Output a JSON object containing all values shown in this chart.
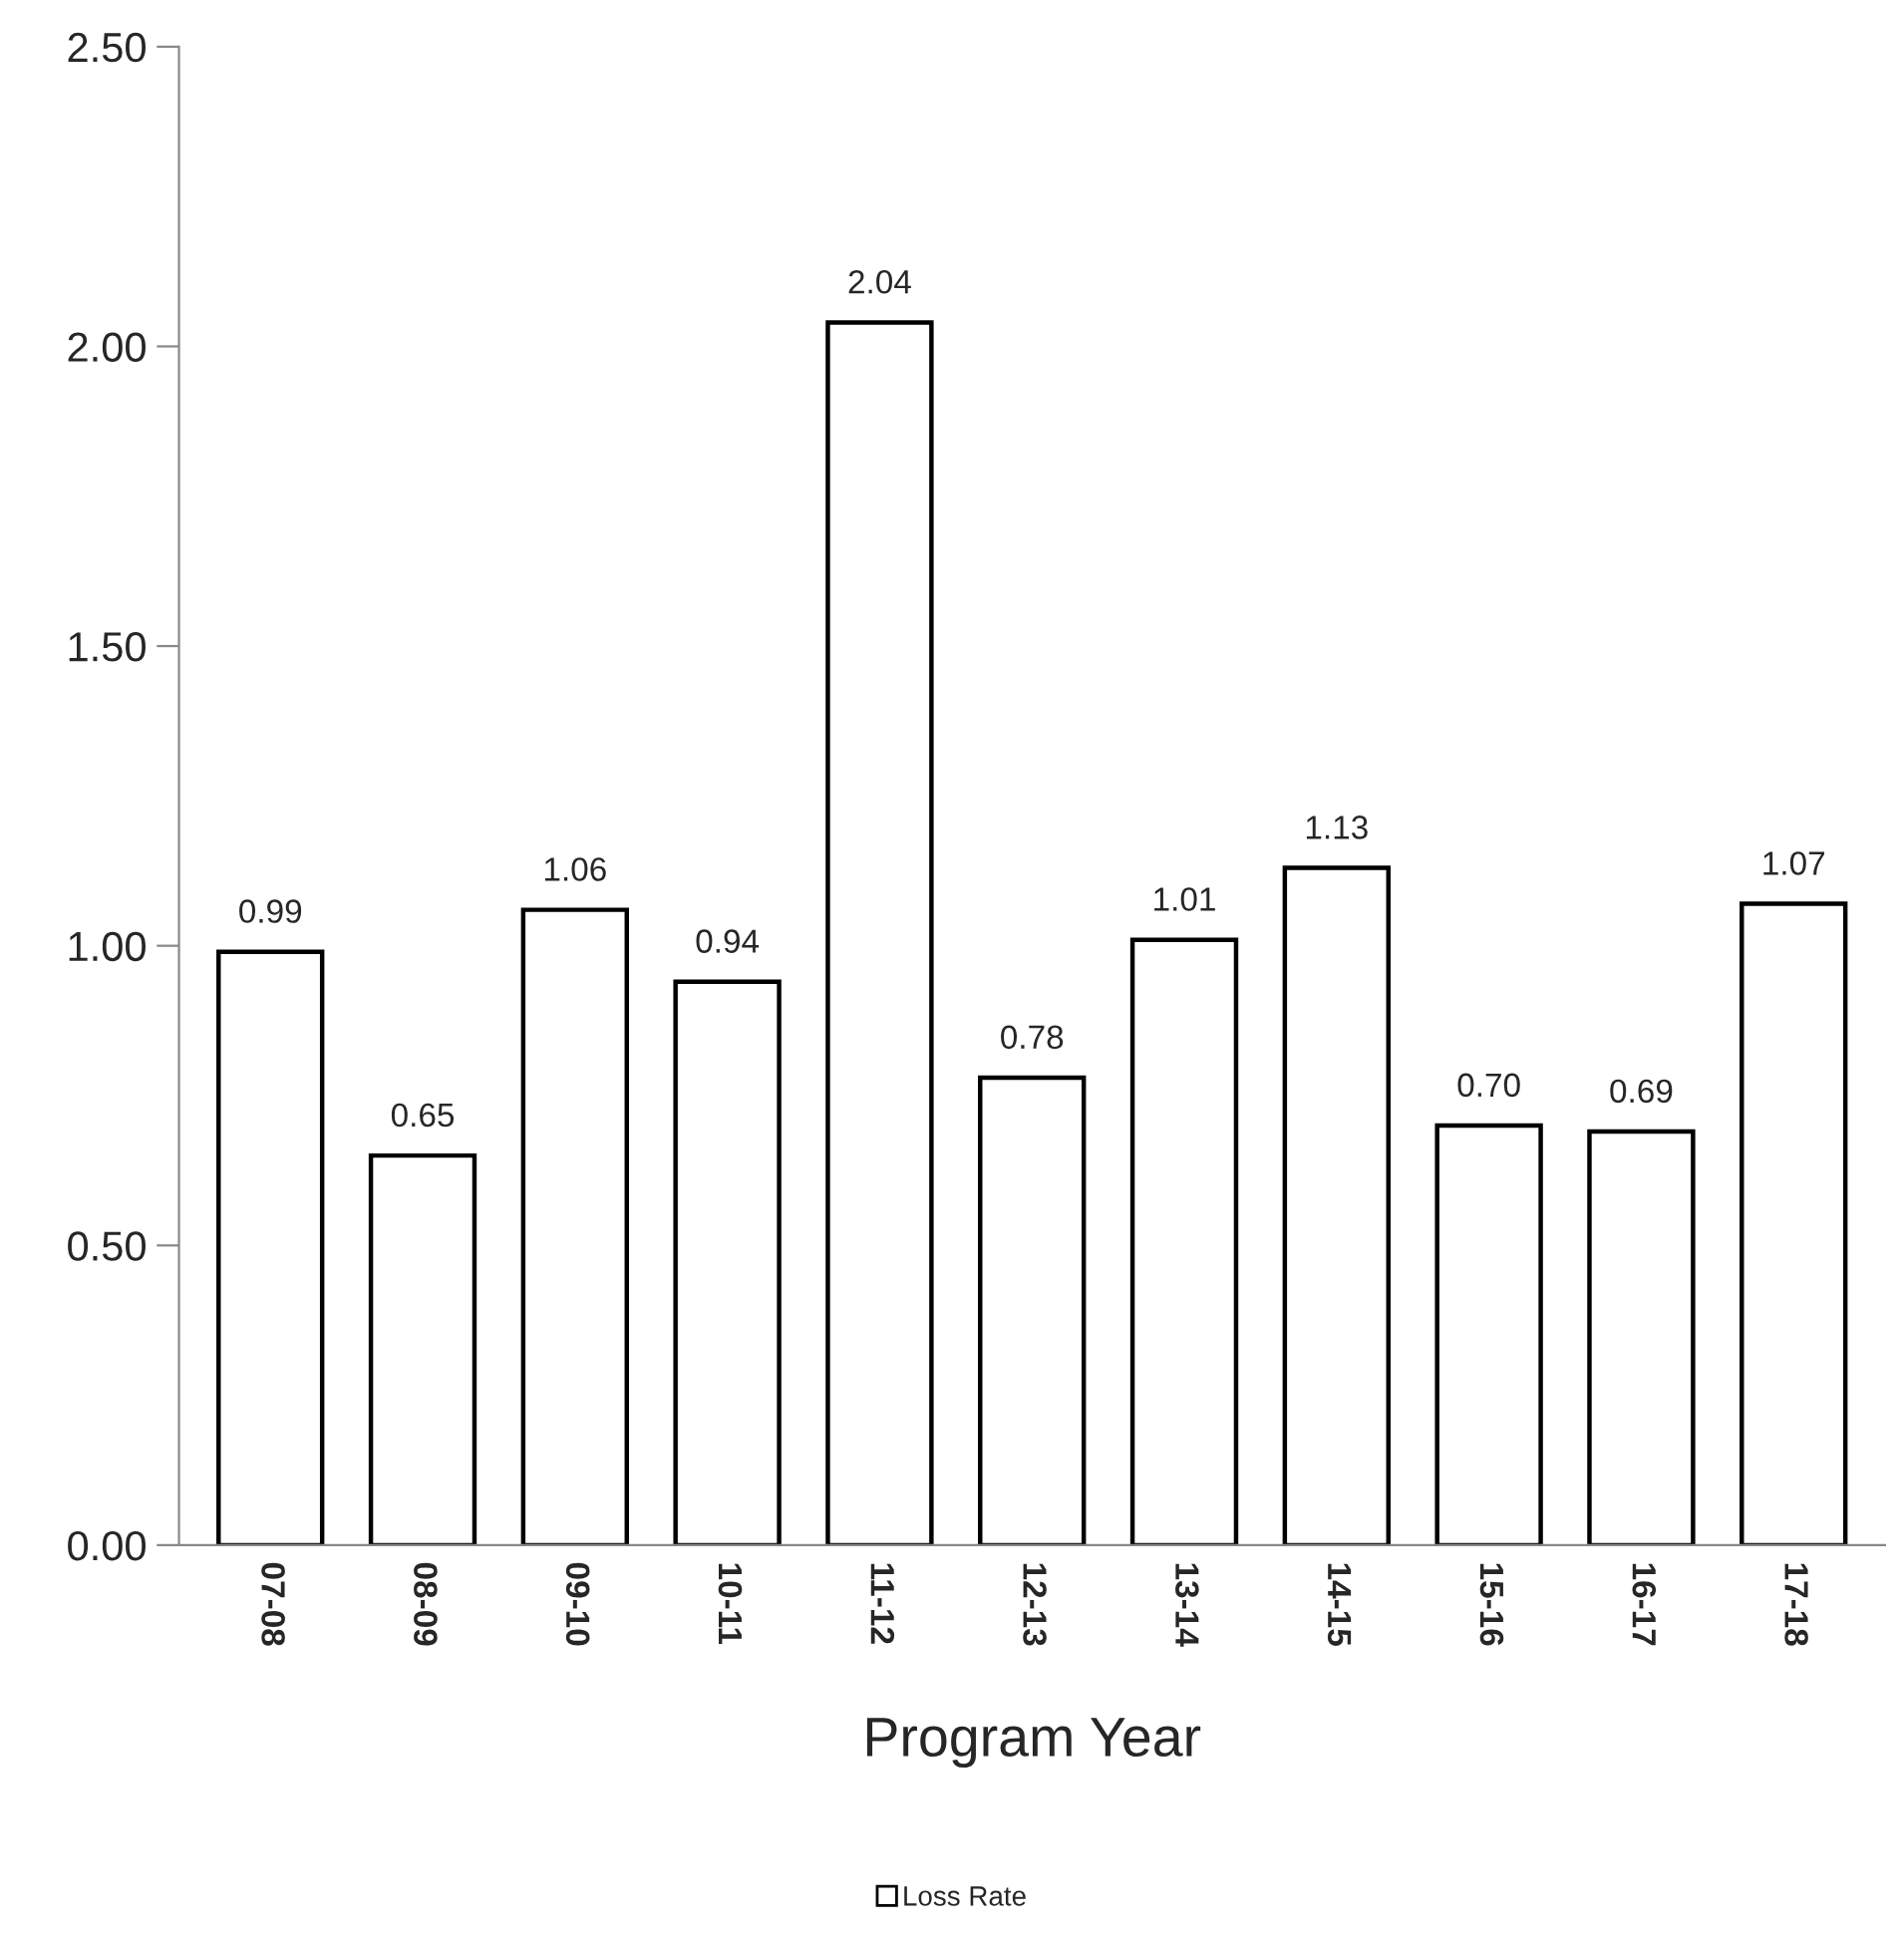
{
  "chart_data": {
    "type": "bar",
    "xlabel": "Program Year",
    "categories": [
      "07-08",
      "08-09",
      "09-10",
      "10-11",
      "11-12",
      "12-13",
      "13-14",
      "14-15",
      "15-16",
      "16-17",
      "17-18"
    ],
    "series": [
      {
        "name": "Loss Rate",
        "color": "#ffffff",
        "values": [
          0.99,
          0.65,
          1.06,
          0.94,
          2.04,
          0.78,
          1.01,
          1.13,
          0.7,
          0.69,
          1.07
        ],
        "value_labels": [
          "0.99",
          "0.65",
          "1.06",
          "0.94",
          "2.04",
          "0.78",
          "1.01",
          "1.13",
          "0.70",
          "0.69",
          "1.07"
        ]
      }
    ],
    "ylim": [
      0,
      2.5
    ],
    "yticks": [
      {
        "value": 0,
        "label": "0.00"
      },
      {
        "value": 0.5,
        "label": "0.50"
      },
      {
        "value": 1,
        "label": "1.00"
      },
      {
        "value": 1.5,
        "label": "1.50"
      },
      {
        "value": 2,
        "label": "2.00"
      },
      {
        "value": 2.5,
        "label": "2.50"
      }
    ],
    "grid": false,
    "legend": "bottom"
  }
}
